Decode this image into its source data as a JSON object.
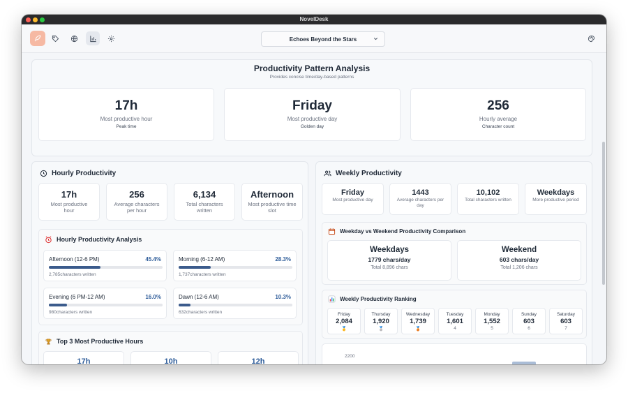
{
  "app": {
    "title": "NovelDesk"
  },
  "toolbar": {
    "novel_select": "Echoes Beyond the Stars"
  },
  "header": {
    "title": "Productivity Pattern Analysis",
    "subtitle": "Provides concise time/day-based patterns"
  },
  "summary": [
    {
      "value": "17h",
      "label": "Most productive hour",
      "sub": "Peak time"
    },
    {
      "value": "Friday",
      "label": "Most productive day",
      "sub": "Golden day"
    },
    {
      "value": "256",
      "label": "Hourly average",
      "sub": "Character count"
    }
  ],
  "hourly": {
    "title": "Hourly Productivity",
    "stats": [
      {
        "value": "17h",
        "label": "Most productive hour"
      },
      {
        "value": "256",
        "label": "Average characters per hour"
      },
      {
        "value": "6,134",
        "label": "Total characters written"
      },
      {
        "value": "Afternoon",
        "label": "Most productive time slot"
      }
    ],
    "analysis_title": "Hourly Productivity Analysis",
    "slots": [
      {
        "name": "Afternoon (12-6 PM)",
        "pct": "45.4%",
        "fraction": 0.454,
        "chars": "2,785characters written"
      },
      {
        "name": "Morning (6-12 AM)",
        "pct": "28.3%",
        "fraction": 0.283,
        "chars": "1,737characters written"
      },
      {
        "name": "Evening (6 PM-12 AM)",
        "pct": "16.0%",
        "fraction": 0.16,
        "chars": "980characters written"
      },
      {
        "name": "Dawn (12-6 AM)",
        "pct": "10.3%",
        "fraction": 0.103,
        "chars": "632characters written"
      }
    ],
    "top3_title": "Top 3 Most Productive Hours",
    "top3": [
      "17h",
      "10h",
      "12h"
    ]
  },
  "weekly": {
    "title": "Weekly Productivity",
    "stats": [
      {
        "value": "Friday",
        "label": "Most productive day"
      },
      {
        "value": "1443",
        "label": "Average characters per day"
      },
      {
        "value": "10,102",
        "label": "Total characters written"
      },
      {
        "value": "Weekdays",
        "label": "More productive period"
      }
    ],
    "comparison_title": "Weekday vs Weekend Productivity Comparison",
    "comparison": [
      {
        "name": "Weekdays",
        "rate": "1779 chars/day",
        "total": "Total 8,896 chars"
      },
      {
        "name": "Weekend",
        "rate": "603 chars/day",
        "total": "Total 1,206 chars"
      }
    ],
    "ranking_title": "Weekly Productivity Ranking",
    "ranking": [
      {
        "day": "Friday",
        "value": "2,084",
        "rank": "🥇"
      },
      {
        "day": "Thursday",
        "value": "1,920",
        "rank": "🥈"
      },
      {
        "day": "Wednesday",
        "value": "1,739",
        "rank": "🥉"
      },
      {
        "day": "Tuesday",
        "value": "1,601",
        "rank": "4"
      },
      {
        "day": "Monday",
        "value": "1,552",
        "rank": "5"
      },
      {
        "day": "Sunday",
        "value": "603",
        "rank": "6"
      },
      {
        "day": "Saturday",
        "value": "603",
        "rank": "7"
      }
    ],
    "chart_label": "2200"
  },
  "colors": {
    "accent": "#3b5b8c",
    "pct_text": "#2f5d9a",
    "logo": "#f6b9a3"
  },
  "icons": {
    "logo": "feather-logo-icon",
    "toolbar": [
      "tag-icon",
      "globe-icon",
      "bar-chart-icon",
      "gear-icon"
    ],
    "theme": "palette-icon"
  }
}
